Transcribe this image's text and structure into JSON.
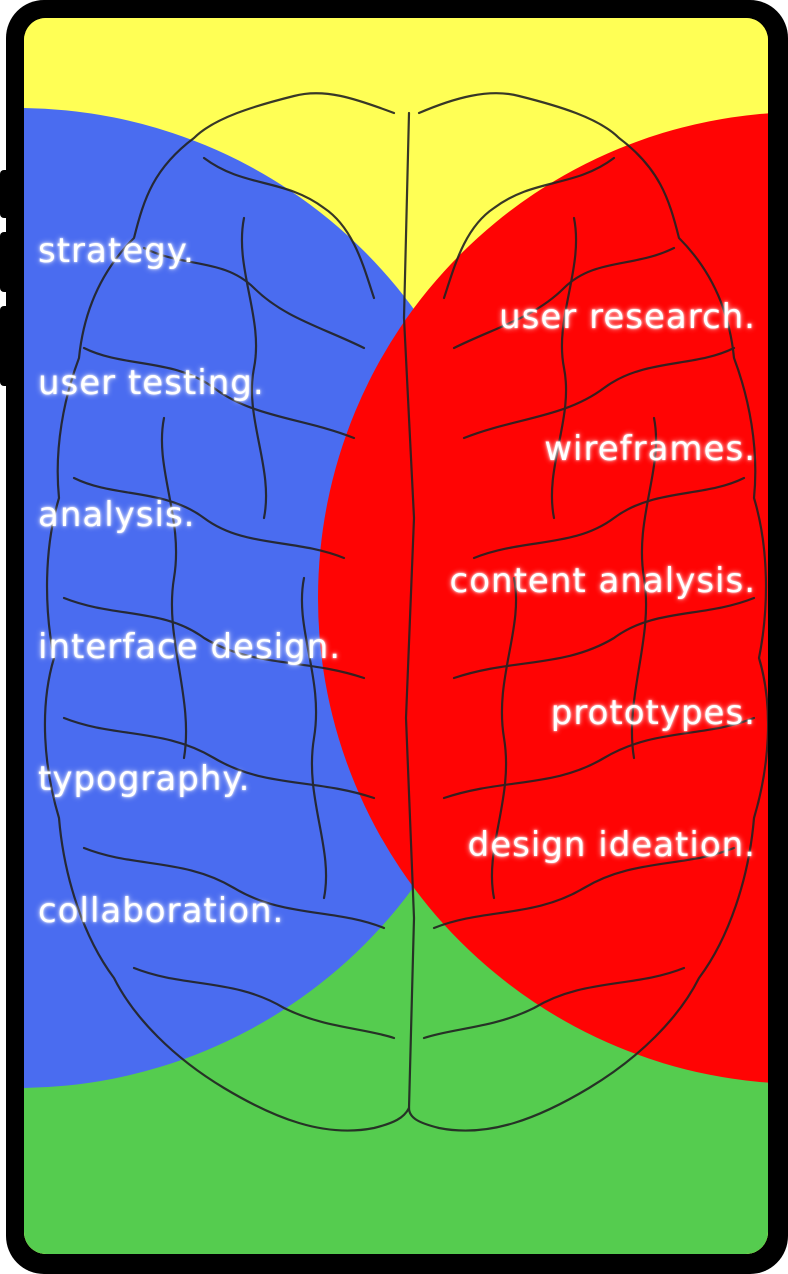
{
  "colors": {
    "frame": "#000000",
    "top_quadrant": "#ffff55",
    "left_circle": "#4a6cf0",
    "right_circle": "#ff0404",
    "bottom_quadrant": "#55cc4f",
    "text": "#ffffff"
  },
  "left_skills": [
    "strategy.",
    "user testing.",
    "analysis.",
    "interface design.",
    "typography.",
    "collaboration."
  ],
  "right_skills": [
    "user research.",
    "wireframes.",
    "content analysis.",
    "prototypes.",
    "design ideation."
  ],
  "illustration": {
    "icon": "brain-outline-icon"
  }
}
